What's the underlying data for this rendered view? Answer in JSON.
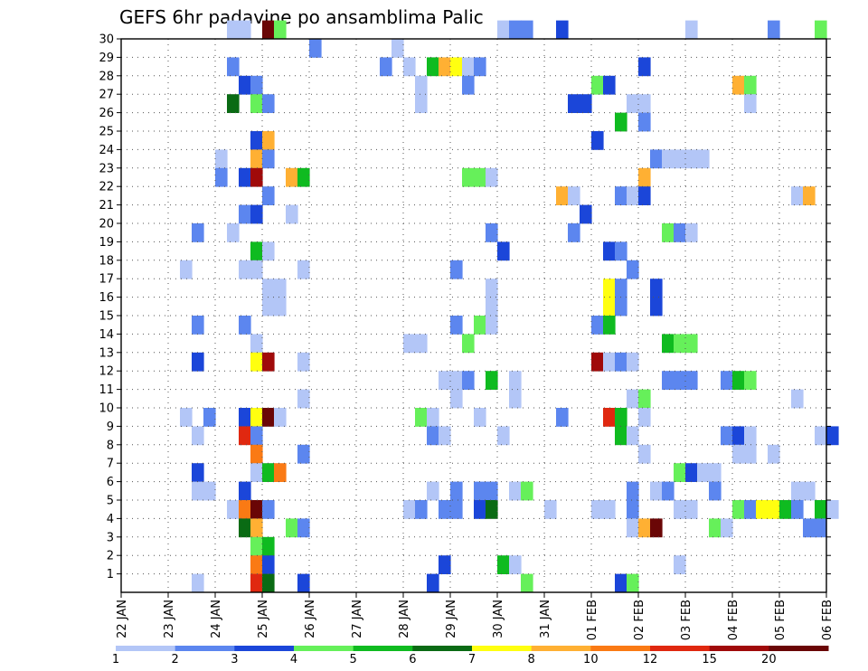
{
  "chart_data": {
    "type": "heatmap",
    "title": "GEFS 6hr padavine po ansamblima Palic",
    "xlabel": "",
    "ylabel": "",
    "y_ticks": [
      "1",
      "2",
      "3",
      "4",
      "5",
      "6",
      "7",
      "8",
      "9",
      "10",
      "11",
      "12",
      "13",
      "14",
      "15",
      "16",
      "17",
      "18",
      "19",
      "20",
      "21",
      "22",
      "23",
      "24",
      "25",
      "26",
      "27",
      "28",
      "29",
      "30"
    ],
    "x_ticks": [
      "22 JAN",
      "23 JAN",
      "24 JAN",
      "25 JAN",
      "26 JAN",
      "27 JAN",
      "28 JAN",
      "29 JAN",
      "30 JAN",
      "31 JAN",
      "01 FEB",
      "02 FEB",
      "03 FEB",
      "04 FEB",
      "05 FEB",
      "06 FEB"
    ],
    "x_range_days": [
      0,
      15
    ],
    "y_range": [
      0,
      30
    ],
    "grid": true,
    "legend": {
      "placement": "bottom",
      "colors": [
        "#b3c6f7",
        "#5c86ef",
        "#1b46d9",
        "#66f05a",
        "#0fbb20",
        "#0a6b14",
        "#ffff10",
        "#ffb033",
        "#fa7a14",
        "#e02810",
        "#a00a0a",
        "#6a0606"
      ],
      "labels": [
        "1",
        "2",
        "3",
        "4",
        "5",
        "6",
        "7",
        "8",
        "10",
        "12",
        "15",
        "20"
      ]
    },
    "cells": [
      {
        "d": 2.25,
        "m": 30,
        "v": 1.5
      },
      {
        "d": 2.5,
        "m": 30,
        "v": 1
      },
      {
        "d": 3.0,
        "m": 30,
        "v": 20
      },
      {
        "d": 3.25,
        "m": 30,
        "v": 4
      },
      {
        "d": 8.0,
        "m": 30,
        "v": 1
      },
      {
        "d": 8.25,
        "m": 30,
        "v": 2
      },
      {
        "d": 8.5,
        "m": 30,
        "v": 2
      },
      {
        "d": 9.25,
        "m": 30,
        "v": 3
      },
      {
        "d": 12.0,
        "m": 30,
        "v": 1
      },
      {
        "d": 13.75,
        "m": 30,
        "v": 2
      },
      {
        "d": 14.75,
        "m": 30,
        "v": 4
      },
      {
        "d": 4.0,
        "m": 29,
        "v": 2
      },
      {
        "d": 5.75,
        "m": 29,
        "v": 1
      },
      {
        "d": 2.25,
        "m": 28,
        "v": 2
      },
      {
        "d": 5.5,
        "m": 28,
        "v": 2
      },
      {
        "d": 6.0,
        "m": 28,
        "v": 1
      },
      {
        "d": 6.5,
        "m": 28,
        "v": 5
      },
      {
        "d": 6.75,
        "m": 28,
        "v": 8
      },
      {
        "d": 7.0,
        "m": 28,
        "v": 7
      },
      {
        "d": 7.25,
        "m": 28,
        "v": 1
      },
      {
        "d": 7.5,
        "m": 28,
        "v": 2
      },
      {
        "d": 11.0,
        "m": 28,
        "v": 3
      },
      {
        "d": 2.5,
        "m": 27,
        "v": 3
      },
      {
        "d": 2.75,
        "m": 27,
        "v": 2
      },
      {
        "d": 6.25,
        "m": 27,
        "v": 1
      },
      {
        "d": 7.25,
        "m": 27,
        "v": 2
      },
      {
        "d": 10.0,
        "m": 27,
        "v": 4
      },
      {
        "d": 10.25,
        "m": 27,
        "v": 3
      },
      {
        "d": 13.0,
        "m": 27,
        "v": 8
      },
      {
        "d": 13.25,
        "m": 27,
        "v": 4
      },
      {
        "d": 2.25,
        "m": 26,
        "v": 6
      },
      {
        "d": 2.75,
        "m": 26,
        "v": 4
      },
      {
        "d": 3.0,
        "m": 26,
        "v": 2
      },
      {
        "d": 6.25,
        "m": 26,
        "v": 1
      },
      {
        "d": 9.5,
        "m": 26,
        "v": 3
      },
      {
        "d": 9.75,
        "m": 26,
        "v": 3
      },
      {
        "d": 10.75,
        "m": 26,
        "v": 1
      },
      {
        "d": 11.0,
        "m": 26,
        "v": 1
      },
      {
        "d": 13.25,
        "m": 26,
        "v": 1
      },
      {
        "d": 10.5,
        "m": 25,
        "v": 5
      },
      {
        "d": 11.0,
        "m": 25,
        "v": 2
      },
      {
        "d": 2.75,
        "m": 24,
        "v": 3
      },
      {
        "d": 3.0,
        "m": 24,
        "v": 8
      },
      {
        "d": 10.0,
        "m": 24,
        "v": 3
      },
      {
        "d": 2.0,
        "m": 23,
        "v": 1
      },
      {
        "d": 2.75,
        "m": 23,
        "v": 8
      },
      {
        "d": 3.0,
        "m": 23,
        "v": 2
      },
      {
        "d": 11.25,
        "m": 23,
        "v": 2
      },
      {
        "d": 11.5,
        "m": 23,
        "v": 1
      },
      {
        "d": 11.75,
        "m": 23,
        "v": 1
      },
      {
        "d": 12.0,
        "m": 23,
        "v": 1
      },
      {
        "d": 12.25,
        "m": 23,
        "v": 1
      },
      {
        "d": 2.0,
        "m": 22,
        "v": 2
      },
      {
        "d": 2.5,
        "m": 22,
        "v": 3
      },
      {
        "d": 2.75,
        "m": 22,
        "v": 15
      },
      {
        "d": 3.5,
        "m": 22,
        "v": 8
      },
      {
        "d": 3.75,
        "m": 22,
        "v": 5
      },
      {
        "d": 7.25,
        "m": 22,
        "v": 4
      },
      {
        "d": 7.5,
        "m": 22,
        "v": 4
      },
      {
        "d": 7.75,
        "m": 22,
        "v": 1
      },
      {
        "d": 11.0,
        "m": 22,
        "v": 8
      },
      {
        "d": 3.0,
        "m": 21,
        "v": 2
      },
      {
        "d": 9.25,
        "m": 21,
        "v": 8
      },
      {
        "d": 9.5,
        "m": 21,
        "v": 1
      },
      {
        "d": 10.5,
        "m": 21,
        "v": 2
      },
      {
        "d": 10.75,
        "m": 21,
        "v": 1
      },
      {
        "d": 11.0,
        "m": 21,
        "v": 3
      },
      {
        "d": 14.25,
        "m": 21,
        "v": 1
      },
      {
        "d": 14.5,
        "m": 21,
        "v": 8
      },
      {
        "d": 2.5,
        "m": 20,
        "v": 2
      },
      {
        "d": 2.75,
        "m": 20,
        "v": 3
      },
      {
        "d": 3.5,
        "m": 20,
        "v": 1
      },
      {
        "d": 9.75,
        "m": 20,
        "v": 3
      },
      {
        "d": 1.5,
        "m": 19,
        "v": 2
      },
      {
        "d": 2.25,
        "m": 19,
        "v": 1
      },
      {
        "d": 7.75,
        "m": 19,
        "v": 2
      },
      {
        "d": 9.5,
        "m": 19,
        "v": 2
      },
      {
        "d": 11.5,
        "m": 19,
        "v": 4
      },
      {
        "d": 11.75,
        "m": 19,
        "v": 2
      },
      {
        "d": 12.0,
        "m": 19,
        "v": 1
      },
      {
        "d": 2.75,
        "m": 18,
        "v": 5
      },
      {
        "d": 3.0,
        "m": 18,
        "v": 1
      },
      {
        "d": 8.0,
        "m": 18,
        "v": 3
      },
      {
        "d": 10.25,
        "m": 18,
        "v": 3
      },
      {
        "d": 10.5,
        "m": 18,
        "v": 2
      },
      {
        "d": 1.25,
        "m": 17,
        "v": 1
      },
      {
        "d": 2.5,
        "m": 17,
        "v": 1
      },
      {
        "d": 2.75,
        "m": 17,
        "v": 1
      },
      {
        "d": 3.75,
        "m": 17,
        "v": 1
      },
      {
        "d": 7.0,
        "m": 17,
        "v": 2
      },
      {
        "d": 10.75,
        "m": 17,
        "v": 2
      },
      {
        "d": 3.0,
        "m": 16,
        "v": 1
      },
      {
        "d": 3.25,
        "m": 16,
        "v": 1
      },
      {
        "d": 7.75,
        "m": 16,
        "v": 1
      },
      {
        "d": 10.25,
        "m": 16,
        "v": 7
      },
      {
        "d": 10.5,
        "m": 16,
        "v": 2
      },
      {
        "d": 11.25,
        "m": 16,
        "v": 3
      },
      {
        "d": 3.0,
        "m": 15,
        "v": 1
      },
      {
        "d": 3.25,
        "m": 15,
        "v": 1
      },
      {
        "d": 7.75,
        "m": 15,
        "v": 1
      },
      {
        "d": 10.25,
        "m": 15,
        "v": 7
      },
      {
        "d": 10.5,
        "m": 15,
        "v": 2
      },
      {
        "d": 11.25,
        "m": 15,
        "v": 3
      },
      {
        "d": 1.5,
        "m": 14,
        "v": 2
      },
      {
        "d": 2.5,
        "m": 14,
        "v": 2
      },
      {
        "d": 7.0,
        "m": 14,
        "v": 2
      },
      {
        "d": 7.5,
        "m": 14,
        "v": 4
      },
      {
        "d": 7.75,
        "m": 14,
        "v": 1
      },
      {
        "d": 10.0,
        "m": 14,
        "v": 2
      },
      {
        "d": 10.25,
        "m": 14,
        "v": 5
      },
      {
        "d": 2.75,
        "m": 13,
        "v": 1
      },
      {
        "d": 6.0,
        "m": 13,
        "v": 1
      },
      {
        "d": 6.25,
        "m": 13,
        "v": 1
      },
      {
        "d": 7.25,
        "m": 13,
        "v": 4
      },
      {
        "d": 11.5,
        "m": 13,
        "v": 5
      },
      {
        "d": 11.75,
        "m": 13,
        "v": 4
      },
      {
        "d": 12.0,
        "m": 13,
        "v": 4
      },
      {
        "d": 1.5,
        "m": 12,
        "v": 3
      },
      {
        "d": 2.75,
        "m": 12,
        "v": 7
      },
      {
        "d": 3.0,
        "m": 12,
        "v": 15
      },
      {
        "d": 3.75,
        "m": 12,
        "v": 1
      },
      {
        "d": 10.0,
        "m": 12,
        "v": 15
      },
      {
        "d": 10.25,
        "m": 12,
        "v": 1
      },
      {
        "d": 10.5,
        "m": 12,
        "v": 2
      },
      {
        "d": 10.75,
        "m": 12,
        "v": 1
      },
      {
        "d": 6.75,
        "m": 11,
        "v": 1
      },
      {
        "d": 7.0,
        "m": 11,
        "v": 1
      },
      {
        "d": 7.25,
        "m": 11,
        "v": 2
      },
      {
        "d": 7.75,
        "m": 11,
        "v": 5
      },
      {
        "d": 8.25,
        "m": 11,
        "v": 1
      },
      {
        "d": 11.5,
        "m": 11,
        "v": 2
      },
      {
        "d": 11.75,
        "m": 11,
        "v": 2
      },
      {
        "d": 12.0,
        "m": 11,
        "v": 2
      },
      {
        "d": 12.75,
        "m": 11,
        "v": 2
      },
      {
        "d": 13.0,
        "m": 11,
        "v": 5
      },
      {
        "d": 13.25,
        "m": 11,
        "v": 4
      },
      {
        "d": 3.75,
        "m": 10,
        "v": 1
      },
      {
        "d": 7.0,
        "m": 10,
        "v": 1
      },
      {
        "d": 8.25,
        "m": 10,
        "v": 1
      },
      {
        "d": 10.75,
        "m": 10,
        "v": 1
      },
      {
        "d": 11.0,
        "m": 10,
        "v": 4
      },
      {
        "d": 14.25,
        "m": 10,
        "v": 1
      },
      {
        "d": 1.25,
        "m": 9,
        "v": 1
      },
      {
        "d": 1.75,
        "m": 9,
        "v": 2
      },
      {
        "d": 2.5,
        "m": 9,
        "v": 3
      },
      {
        "d": 2.75,
        "m": 9,
        "v": 7
      },
      {
        "d": 3.0,
        "m": 9,
        "v": 20
      },
      {
        "d": 3.25,
        "m": 9,
        "v": 1
      },
      {
        "d": 6.25,
        "m": 9,
        "v": 4
      },
      {
        "d": 6.5,
        "m": 9,
        "v": 1
      },
      {
        "d": 7.5,
        "m": 9,
        "v": 1
      },
      {
        "d": 9.25,
        "m": 9,
        "v": 2
      },
      {
        "d": 10.25,
        "m": 9,
        "v": 12
      },
      {
        "d": 10.5,
        "m": 9,
        "v": 5
      },
      {
        "d": 11.0,
        "m": 9,
        "v": 1
      },
      {
        "d": 1.5,
        "m": 8,
        "v": 1
      },
      {
        "d": 2.5,
        "m": 8,
        "v": 12
      },
      {
        "d": 2.75,
        "m": 8,
        "v": 2
      },
      {
        "d": 6.5,
        "m": 8,
        "v": 2
      },
      {
        "d": 6.75,
        "m": 8,
        "v": 1
      },
      {
        "d": 8.0,
        "m": 8,
        "v": 1
      },
      {
        "d": 10.5,
        "m": 8,
        "v": 5
      },
      {
        "d": 10.75,
        "m": 8,
        "v": 1
      },
      {
        "d": 12.75,
        "m": 8,
        "v": 2
      },
      {
        "d": 13.0,
        "m": 8,
        "v": 3
      },
      {
        "d": 13.25,
        "m": 8,
        "v": 1
      },
      {
        "d": 14.75,
        "m": 8,
        "v": 1
      },
      {
        "d": 15.0,
        "m": 8,
        "v": 3
      },
      {
        "d": 2.75,
        "m": 7,
        "v": 10
      },
      {
        "d": 3.75,
        "m": 7,
        "v": 2
      },
      {
        "d": 11.0,
        "m": 7,
        "v": 1
      },
      {
        "d": 13.0,
        "m": 7,
        "v": 1
      },
      {
        "d": 13.25,
        "m": 7,
        "v": 1
      },
      {
        "d": 13.75,
        "m": 7,
        "v": 1
      },
      {
        "d": 1.5,
        "m": 6,
        "v": 3
      },
      {
        "d": 2.75,
        "m": 6,
        "v": 1
      },
      {
        "d": 3.0,
        "m": 6,
        "v": 5
      },
      {
        "d": 3.25,
        "m": 6,
        "v": 10
      },
      {
        "d": 11.75,
        "m": 6,
        "v": 4
      },
      {
        "d": 12.0,
        "m": 6,
        "v": 3
      },
      {
        "d": 12.25,
        "m": 6,
        "v": 1
      },
      {
        "d": 12.5,
        "m": 6,
        "v": 1
      },
      {
        "d": 1.5,
        "m": 5,
        "v": 1
      },
      {
        "d": 1.75,
        "m": 5,
        "v": 1
      },
      {
        "d": 2.5,
        "m": 5,
        "v": 3
      },
      {
        "d": 6.5,
        "m": 5,
        "v": 1
      },
      {
        "d": 7.0,
        "m": 5,
        "v": 2
      },
      {
        "d": 7.5,
        "m": 5,
        "v": 2
      },
      {
        "d": 7.75,
        "m": 5,
        "v": 2
      },
      {
        "d": 8.25,
        "m": 5,
        "v": 1
      },
      {
        "d": 8.5,
        "m": 5,
        "v": 4
      },
      {
        "d": 10.75,
        "m": 5,
        "v": 2
      },
      {
        "d": 11.25,
        "m": 5,
        "v": 1
      },
      {
        "d": 11.5,
        "m": 5,
        "v": 2
      },
      {
        "d": 12.5,
        "m": 5,
        "v": 2
      },
      {
        "d": 14.25,
        "m": 5,
        "v": 1
      },
      {
        "d": 14.5,
        "m": 5,
        "v": 1
      },
      {
        "d": 2.25,
        "m": 4,
        "v": 1
      },
      {
        "d": 2.5,
        "m": 4,
        "v": 10
      },
      {
        "d": 2.75,
        "m": 4,
        "v": 20
      },
      {
        "d": 3.0,
        "m": 4,
        "v": 2
      },
      {
        "d": 6.0,
        "m": 4,
        "v": 1
      },
      {
        "d": 6.25,
        "m": 4,
        "v": 2
      },
      {
        "d": 6.75,
        "m": 4,
        "v": 2
      },
      {
        "d": 7.0,
        "m": 4,
        "v": 2
      },
      {
        "d": 7.5,
        "m": 4,
        "v": 3
      },
      {
        "d": 7.75,
        "m": 4,
        "v": 6
      },
      {
        "d": 9.0,
        "m": 4,
        "v": 1
      },
      {
        "d": 10.0,
        "m": 4,
        "v": 1
      },
      {
        "d": 10.25,
        "m": 4,
        "v": 1
      },
      {
        "d": 10.75,
        "m": 4,
        "v": 2
      },
      {
        "d": 11.75,
        "m": 4,
        "v": 1
      },
      {
        "d": 12.0,
        "m": 4,
        "v": 1
      },
      {
        "d": 13.0,
        "m": 4,
        "v": 4
      },
      {
        "d": 13.25,
        "m": 4,
        "v": 2
      },
      {
        "d": 13.5,
        "m": 4,
        "v": 7
      },
      {
        "d": 13.75,
        "m": 4,
        "v": 7
      },
      {
        "d": 14.0,
        "m": 4,
        "v": 5
      },
      {
        "d": 14.25,
        "m": 4,
        "v": 2
      },
      {
        "d": 14.75,
        "m": 4,
        "v": 5
      },
      {
        "d": 15.0,
        "m": 4,
        "v": 1
      },
      {
        "d": 2.5,
        "m": 3,
        "v": 6
      },
      {
        "d": 2.75,
        "m": 3,
        "v": 8
      },
      {
        "d": 3.5,
        "m": 3,
        "v": 4
      },
      {
        "d": 3.75,
        "m": 3,
        "v": 2
      },
      {
        "d": 10.75,
        "m": 3,
        "v": 1
      },
      {
        "d": 11.0,
        "m": 3,
        "v": 8
      },
      {
        "d": 11.25,
        "m": 3,
        "v": 20
      },
      {
        "d": 12.5,
        "m": 3,
        "v": 4
      },
      {
        "d": 12.75,
        "m": 3,
        "v": 1
      },
      {
        "d": 14.5,
        "m": 3,
        "v": 2
      },
      {
        "d": 14.75,
        "m": 3,
        "v": 2
      },
      {
        "d": 2.75,
        "m": 2,
        "v": 4
      },
      {
        "d": 3.0,
        "m": 2,
        "v": 5
      },
      {
        "d": 2.75,
        "m": 1,
        "v": 10
      },
      {
        "d": 3.0,
        "m": 1,
        "v": 3
      },
      {
        "d": 6.75,
        "m": 1,
        "v": 3
      },
      {
        "d": 8.0,
        "m": 1,
        "v": 5
      },
      {
        "d": 8.25,
        "m": 1,
        "v": 1
      },
      {
        "d": 11.75,
        "m": 1,
        "v": 1
      },
      {
        "d": 1.5,
        "m": 0,
        "v": 1
      },
      {
        "d": 2.75,
        "m": 0,
        "v": 12
      },
      {
        "d": 3.0,
        "m": 0,
        "v": 6
      },
      {
        "d": 3.75,
        "m": 0,
        "v": 3
      },
      {
        "d": 6.5,
        "m": 0,
        "v": 3
      },
      {
        "d": 8.5,
        "m": 0,
        "v": 4
      },
      {
        "d": 10.5,
        "m": 0,
        "v": 3
      },
      {
        "d": 10.75,
        "m": 0,
        "v": 4
      }
    ]
  }
}
